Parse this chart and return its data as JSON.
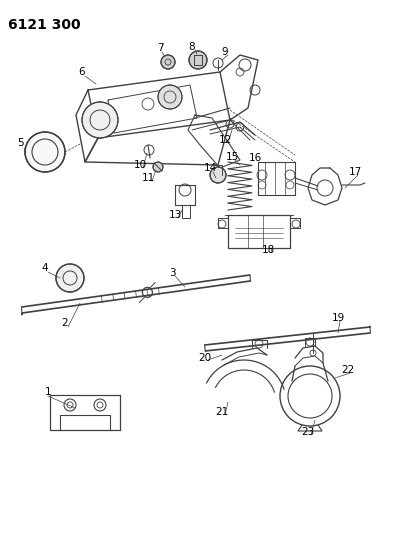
{
  "title": "6121 300",
  "bg_color": "#ffffff",
  "line_color": "#404040",
  "text_color": "#000000",
  "title_fontsize": 10,
  "label_fontsize": 7.5,
  "figsize": [
    4.08,
    5.33
  ],
  "dpi": 100
}
